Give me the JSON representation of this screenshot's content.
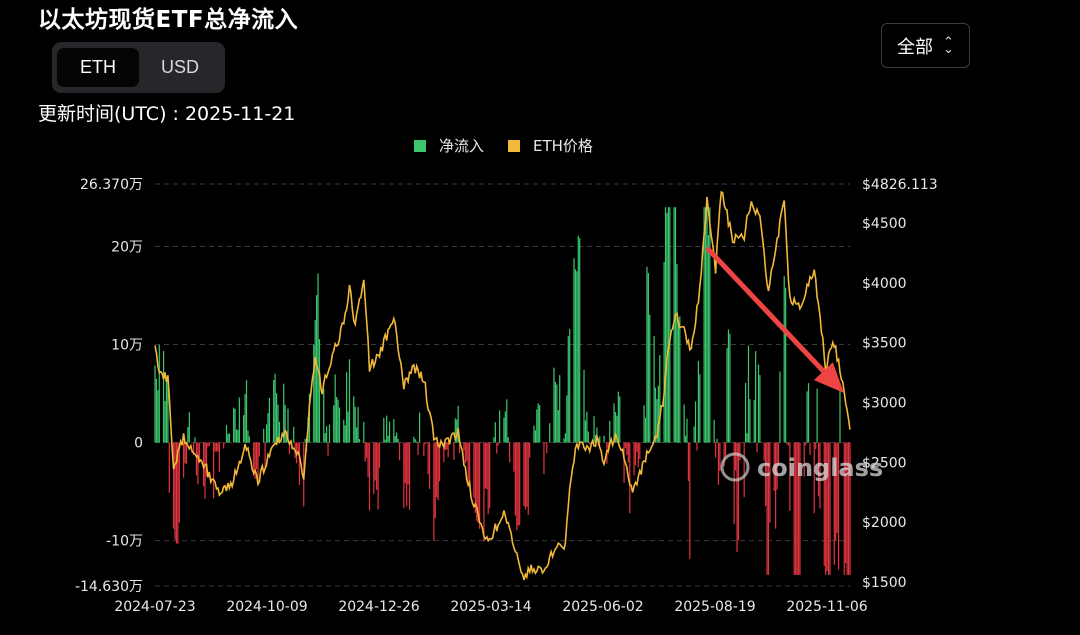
{
  "title": "以太坊现货ETF总净流入",
  "toggle": {
    "options": [
      "ETH",
      "USD"
    ],
    "selected": "ETH"
  },
  "range": {
    "label": "全部"
  },
  "updated": {
    "label": "更新时间(UTC) : 2025-11-21"
  },
  "watermark": "coinglass",
  "colors": {
    "inflow": "#3bc66f",
    "outflow": "#e0343f",
    "price": "#f1b83a",
    "background": "#000000",
    "grid": "#3a3a3a",
    "arrow": "#ee4444"
  },
  "chart_data": {
    "type": "bar",
    "legend": [
      {
        "name": "净流入",
        "color": "#3bc66f"
      },
      {
        "name": "ETH价格",
        "color": "#f1b83a"
      }
    ],
    "left_axis": {
      "ticks": [
        {
          "value": 263700,
          "label": "26.370万"
        },
        {
          "value": 200000,
          "label": "20万"
        },
        {
          "value": 100000,
          "label": "10万"
        },
        {
          "value": 0,
          "label": "0"
        },
        {
          "value": -100000,
          "label": "-10万"
        },
        {
          "value": -146300,
          "label": "-14.630万"
        }
      ],
      "ylim": [
        -146300,
        263700
      ]
    },
    "right_axis": {
      "ticks": [
        {
          "value": 4826.113,
          "label": "$4826.113"
        },
        {
          "value": 4500,
          "label": "$4500"
        },
        {
          "value": 4000,
          "label": "$4000"
        },
        {
          "value": 3500,
          "label": "$3500"
        },
        {
          "value": 3000,
          "label": "$3000"
        },
        {
          "value": 2500,
          "label": "$2500"
        },
        {
          "value": 2000,
          "label": "$2000"
        },
        {
          "value": 1500,
          "label": "$1500"
        }
      ],
      "ylim": [
        1500,
        4826.113
      ]
    },
    "x_axis": {
      "start": "2024-07-23",
      "end": "2025-11-21",
      "ticks": [
        "2024-07-23",
        "2024-10-09",
        "2024-12-26",
        "2025-03-14",
        "2025-06-02",
        "2025-08-19",
        "2025-11-06"
      ]
    },
    "price_series": [
      [
        "2024-07-23",
        3480
      ],
      [
        "2024-07-26",
        3270
      ],
      [
        "2024-08-01",
        3200
      ],
      [
        "2024-08-05",
        2450
      ],
      [
        "2024-08-12",
        2710
      ],
      [
        "2024-08-20",
        2600
      ],
      [
        "2024-08-27",
        2460
      ],
      [
        "2024-09-06",
        2250
      ],
      [
        "2024-09-15",
        2330
      ],
      [
        "2024-09-24",
        2640
      ],
      [
        "2024-10-03",
        2350
      ],
      [
        "2024-10-14",
        2630
      ],
      [
        "2024-10-21",
        2750
      ],
      [
        "2024-10-29",
        2620
      ],
      [
        "2024-11-04",
        2400
      ],
      [
        "2024-11-09",
        3100
      ],
      [
        "2024-11-12",
        3350
      ],
      [
        "2024-11-17",
        3100
      ],
      [
        "2024-11-24",
        3400
      ],
      [
        "2024-12-02",
        3650
      ],
      [
        "2024-12-06",
        3950
      ],
      [
        "2024-12-10",
        3650
      ],
      [
        "2024-12-16",
        4050
      ],
      [
        "2024-12-20",
        3300
      ],
      [
        "2024-12-26",
        3380
      ],
      [
        "2025-01-06",
        3700
      ],
      [
        "2025-01-13",
        3130
      ],
      [
        "2025-01-20",
        3300
      ],
      [
        "2025-01-27",
        3200
      ],
      [
        "2025-02-03",
        2700
      ],
      [
        "2025-02-10",
        2650
      ],
      [
        "2025-02-20",
        2750
      ],
      [
        "2025-02-25",
        2450
      ],
      [
        "2025-03-03",
        2150
      ],
      [
        "2025-03-10",
        1900
      ],
      [
        "2025-03-14",
        1870
      ],
      [
        "2025-03-24",
        2060
      ],
      [
        "2025-03-31",
        1810
      ],
      [
        "2025-04-07",
        1550
      ],
      [
        "2025-04-14",
        1620
      ],
      [
        "2025-04-21",
        1580
      ],
      [
        "2025-04-29",
        1810
      ],
      [
        "2025-05-06",
        1810
      ],
      [
        "2025-05-09",
        2300
      ],
      [
        "2025-05-14",
        2650
      ],
      [
        "2025-05-22",
        2600
      ],
      [
        "2025-05-29",
        2700
      ],
      [
        "2025-06-02",
        2500
      ],
      [
        "2025-06-10",
        2750
      ],
      [
        "2025-06-16",
        2550
      ],
      [
        "2025-06-22",
        2250
      ],
      [
        "2025-06-30",
        2500
      ],
      [
        "2025-07-09",
        2750
      ],
      [
        "2025-07-13",
        3000
      ],
      [
        "2025-07-18",
        3550
      ],
      [
        "2025-07-22",
        3750
      ],
      [
        "2025-08-02",
        3450
      ],
      [
        "2025-08-08",
        3950
      ],
      [
        "2025-08-13",
        4700
      ],
      [
        "2025-08-19",
        4100
      ],
      [
        "2025-08-23",
        4800
      ],
      [
        "2025-08-31",
        4350
      ],
      [
        "2025-09-08",
        4400
      ],
      [
        "2025-09-13",
        4700
      ],
      [
        "2025-09-20",
        4500
      ],
      [
        "2025-09-25",
        3900
      ],
      [
        "2025-09-28",
        4150
      ],
      [
        "2025-10-06",
        4700
      ],
      [
        "2025-10-10",
        3850
      ],
      [
        "2025-10-17",
        3800
      ],
      [
        "2025-10-27",
        4100
      ],
      [
        "2025-11-04",
        3300
      ],
      [
        "2025-11-10",
        3500
      ],
      [
        "2025-11-16",
        3150
      ],
      [
        "2025-11-21",
        2800
      ]
    ],
    "flow_seed": 1234
  },
  "annotation": {
    "type": "arrow",
    "from_date": "2025-08-27",
    "to_date": "2025-11-21"
  }
}
